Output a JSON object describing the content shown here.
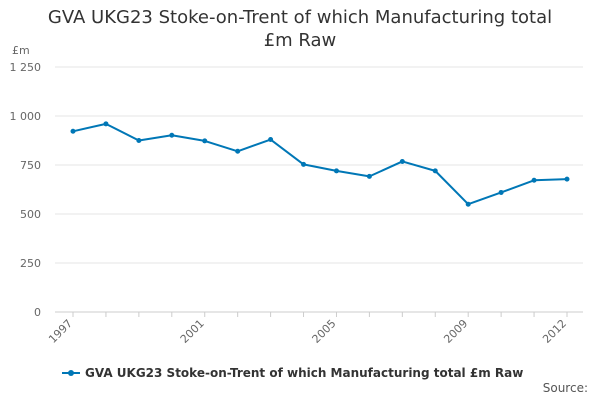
{
  "colors": {
    "series": "#0077b6",
    "grid": "#e6e6e6",
    "axis": "#cccccc"
  },
  "chart_data": {
    "type": "line",
    "title_line1": "GVA UKG23 Stoke-on-Trent of which Manufacturing total",
    "title_line2": "£m Raw",
    "ylabel": "£m",
    "ylim": [
      0,
      1250
    ],
    "yticks": [
      0,
      250,
      500,
      750,
      1000,
      1250
    ],
    "ytick_labels": [
      "0",
      "250",
      "500",
      "750",
      "1 000",
      "1 250"
    ],
    "x": [
      1997,
      1998,
      1999,
      2000,
      2001,
      2002,
      2003,
      2004,
      2005,
      2006,
      2007,
      2008,
      2009,
      2010,
      2011,
      2012
    ],
    "xtick_labels": [
      "1997",
      "2001",
      "2005",
      "2009",
      "2012"
    ],
    "grid": true,
    "legend_position": "bottom",
    "series": [
      {
        "name": "GVA UKG23 Stoke-on-Trent of which Manufacturing total £m Raw",
        "values": [
          922,
          960,
          875,
          902,
          873,
          820,
          880,
          753,
          720,
          692,
          768,
          720,
          550,
          610,
          672,
          678
        ]
      }
    ],
    "source_label": "Source:"
  }
}
